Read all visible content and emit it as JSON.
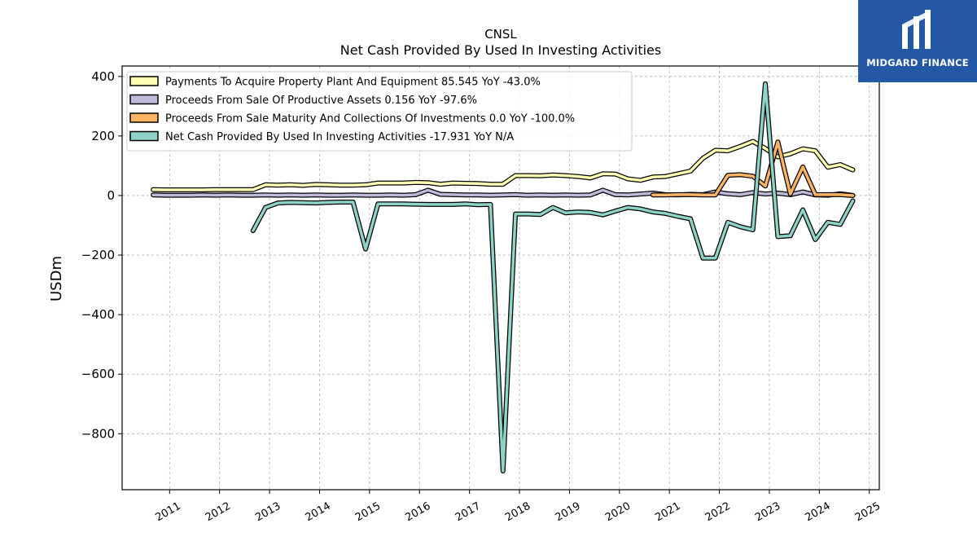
{
  "chart_data": {
    "type": "line",
    "title": "CNSL",
    "subtitle": "Net Cash Provided By Used In Investing Activities",
    "ylabel": "USDm",
    "xlabel": "",
    "xlim": [
      2010.05,
      2025.2
    ],
    "ylim": [
      -988,
      435
    ],
    "yticks": [
      400,
      200,
      0,
      -200,
      -400,
      -600,
      -800
    ],
    "xticks": [
      2011,
      2012,
      2013,
      2014,
      2015,
      2016,
      2017,
      2018,
      2019,
      2020,
      2021,
      2022,
      2023,
      2024,
      2025
    ],
    "grid": true,
    "legend_position": "top-left",
    "series": [
      {
        "name": "Payments To Acquire Property Plant And Equipment  85.545 YoY -43.0%",
        "color": "#ffffb3",
        "points": [
          [
            2010.67,
            20
          ],
          [
            2010.92,
            19
          ],
          [
            2011.17,
            19
          ],
          [
            2011.42,
            19
          ],
          [
            2011.67,
            19
          ],
          [
            2011.92,
            20
          ],
          [
            2012.17,
            20
          ],
          [
            2012.42,
            20
          ],
          [
            2012.67,
            20
          ],
          [
            2012.92,
            36
          ],
          [
            2013.17,
            35
          ],
          [
            2013.42,
            36
          ],
          [
            2013.67,
            34
          ],
          [
            2013.92,
            37
          ],
          [
            2014.17,
            36
          ],
          [
            2014.42,
            35
          ],
          [
            2014.67,
            35
          ],
          [
            2014.92,
            36
          ],
          [
            2015.17,
            42
          ],
          [
            2015.42,
            42
          ],
          [
            2015.67,
            42
          ],
          [
            2015.92,
            44
          ],
          [
            2016.17,
            43
          ],
          [
            2016.42,
            38
          ],
          [
            2016.67,
            42
          ],
          [
            2016.92,
            41
          ],
          [
            2017.17,
            40
          ],
          [
            2017.42,
            38
          ],
          [
            2017.67,
            38
          ],
          [
            2017.92,
            67
          ],
          [
            2018.17,
            67
          ],
          [
            2018.42,
            66
          ],
          [
            2018.67,
            69
          ],
          [
            2018.92,
            67
          ],
          [
            2019.17,
            64
          ],
          [
            2019.42,
            59
          ],
          [
            2019.67,
            73
          ],
          [
            2019.92,
            72
          ],
          [
            2020.17,
            56
          ],
          [
            2020.42,
            51
          ],
          [
            2020.67,
            62
          ],
          [
            2020.92,
            64
          ],
          [
            2021.17,
            73
          ],
          [
            2021.42,
            82
          ],
          [
            2021.67,
            125
          ],
          [
            2021.92,
            152
          ],
          [
            2022.17,
            150
          ],
          [
            2022.42,
            165
          ],
          [
            2022.67,
            182
          ],
          [
            2022.92,
            158
          ],
          [
            2023.17,
            130
          ],
          [
            2023.42,
            140
          ],
          [
            2023.67,
            157
          ],
          [
            2023.92,
            150
          ],
          [
            2024.17,
            95
          ],
          [
            2024.42,
            104
          ],
          [
            2024.67,
            86
          ]
        ]
      },
      {
        "name": "Proceeds From Sale Of Productive Assets  0.156 YoY -97.6%",
        "color": "#bebada",
        "points": [
          [
            2010.67,
            2
          ],
          [
            2010.92,
            1
          ],
          [
            2011.17,
            1
          ],
          [
            2011.42,
            1
          ],
          [
            2011.67,
            2
          ],
          [
            2011.92,
            1
          ],
          [
            2012.17,
            2
          ],
          [
            2012.42,
            1
          ],
          [
            2012.67,
            1
          ],
          [
            2012.92,
            2
          ],
          [
            2013.17,
            1
          ],
          [
            2013.42,
            2
          ],
          [
            2013.67,
            1
          ],
          [
            2013.92,
            2
          ],
          [
            2014.17,
            1
          ],
          [
            2014.42,
            1
          ],
          [
            2014.67,
            2
          ],
          [
            2014.92,
            1
          ],
          [
            2015.17,
            1
          ],
          [
            2015.42,
            2
          ],
          [
            2015.67,
            1
          ],
          [
            2015.92,
            3
          ],
          [
            2016.17,
            18
          ],
          [
            2016.42,
            4
          ],
          [
            2016.67,
            3
          ],
          [
            2016.92,
            2
          ],
          [
            2017.17,
            2
          ],
          [
            2017.42,
            1
          ],
          [
            2017.67,
            2
          ],
          [
            2017.92,
            3
          ],
          [
            2018.17,
            1
          ],
          [
            2018.42,
            2
          ],
          [
            2018.67,
            1
          ],
          [
            2018.92,
            2
          ],
          [
            2019.17,
            1
          ],
          [
            2019.42,
            2
          ],
          [
            2019.67,
            18
          ],
          [
            2019.92,
            3
          ],
          [
            2020.17,
            2
          ],
          [
            2020.42,
            5
          ],
          [
            2020.67,
            8
          ],
          [
            2020.92,
            3
          ],
          [
            2021.17,
            2
          ],
          [
            2021.42,
            4
          ],
          [
            2021.67,
            3
          ],
          [
            2021.92,
            12
          ],
          [
            2022.17,
            6
          ],
          [
            2022.42,
            3
          ],
          [
            2022.67,
            10
          ],
          [
            2022.92,
            5
          ],
          [
            2023.17,
            8
          ],
          [
            2023.42,
            3
          ],
          [
            2023.67,
            12
          ],
          [
            2023.92,
            2
          ],
          [
            2024.17,
            1
          ],
          [
            2024.42,
            6
          ],
          [
            2024.67,
            0.156
          ]
        ]
      },
      {
        "name": "Proceeds From Sale Maturity And Collections Of Investments  0.0 YoY -100.0%",
        "color": "#fdb462",
        "points": [
          [
            2020.67,
            2
          ],
          [
            2020.92,
            2
          ],
          [
            2021.17,
            3
          ],
          [
            2021.42,
            3
          ],
          [
            2021.67,
            2
          ],
          [
            2021.92,
            2
          ],
          [
            2022.17,
            68
          ],
          [
            2022.42,
            70
          ],
          [
            2022.67,
            65
          ],
          [
            2022.92,
            32
          ],
          [
            2023.17,
            180
          ],
          [
            2023.42,
            5
          ],
          [
            2023.67,
            96
          ],
          [
            2023.92,
            3
          ],
          [
            2024.17,
            3
          ],
          [
            2024.42,
            3
          ],
          [
            2024.67,
            0
          ]
        ]
      },
      {
        "name": "Net Cash Provided By Used In Investing Activities  -17.931 YoY N/A",
        "color": "#8dd3c7",
        "points": [
          [
            2012.67,
            -118
          ],
          [
            2012.92,
            -40
          ],
          [
            2013.17,
            -25
          ],
          [
            2013.42,
            -23
          ],
          [
            2013.67,
            -24
          ],
          [
            2013.92,
            -25
          ],
          [
            2014.17,
            -23
          ],
          [
            2014.42,
            -22
          ],
          [
            2014.67,
            -22
          ],
          [
            2014.92,
            -180
          ],
          [
            2015.17,
            -28
          ],
          [
            2015.42,
            -28
          ],
          [
            2015.67,
            -28
          ],
          [
            2015.92,
            -29
          ],
          [
            2016.17,
            -30
          ],
          [
            2016.42,
            -30
          ],
          [
            2016.67,
            -30
          ],
          [
            2016.92,
            -28
          ],
          [
            2017.17,
            -31
          ],
          [
            2017.42,
            -30
          ],
          [
            2017.67,
            -925
          ],
          [
            2017.92,
            -62
          ],
          [
            2018.17,
            -62
          ],
          [
            2018.42,
            -64
          ],
          [
            2018.67,
            -40
          ],
          [
            2018.92,
            -58
          ],
          [
            2019.17,
            -55
          ],
          [
            2019.42,
            -57
          ],
          [
            2019.67,
            -65
          ],
          [
            2019.92,
            -52
          ],
          [
            2020.17,
            -40
          ],
          [
            2020.42,
            -45
          ],
          [
            2020.67,
            -55
          ],
          [
            2020.92,
            -60
          ],
          [
            2021.17,
            -70
          ],
          [
            2021.42,
            -78
          ],
          [
            2021.67,
            -210
          ],
          [
            2021.92,
            -210
          ],
          [
            2022.17,
            -90
          ],
          [
            2022.42,
            -105
          ],
          [
            2022.67,
            -115
          ],
          [
            2022.92,
            375
          ],
          [
            2023.17,
            -138
          ],
          [
            2023.42,
            -135
          ],
          [
            2023.67,
            -48
          ],
          [
            2023.92,
            -148
          ],
          [
            2024.17,
            -90
          ],
          [
            2024.42,
            -97
          ],
          [
            2024.67,
            -17.931
          ]
        ]
      }
    ]
  },
  "logo": {
    "text": "MIDGARD FINANCE"
  }
}
